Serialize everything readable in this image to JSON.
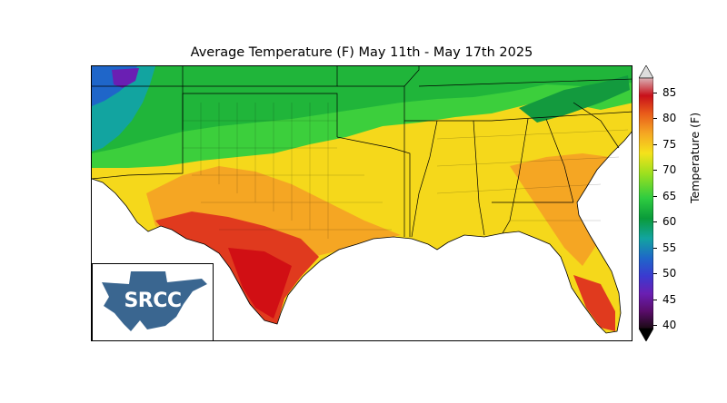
{
  "title": "Average Temperature (F) May 11th - May 17th 2025",
  "logo": {
    "text": "SRCC"
  },
  "colorbar": {
    "label": "Temperature (F)",
    "ticks": [
      "85",
      "80",
      "75",
      "70",
      "65",
      "60",
      "55",
      "50",
      "45",
      "40"
    ],
    "min": 40,
    "max": 85,
    "extend": "both"
  },
  "colors": {
    "hot": "#d7191c",
    "warm": "#f39c12",
    "mild": "#f5e21b",
    "cool": "#2ecc40",
    "cold": "#0a9b3a",
    "very_cold": "#1f66c9",
    "frigid": "#6a1fb3",
    "logo_fill": "#3a6690"
  }
}
